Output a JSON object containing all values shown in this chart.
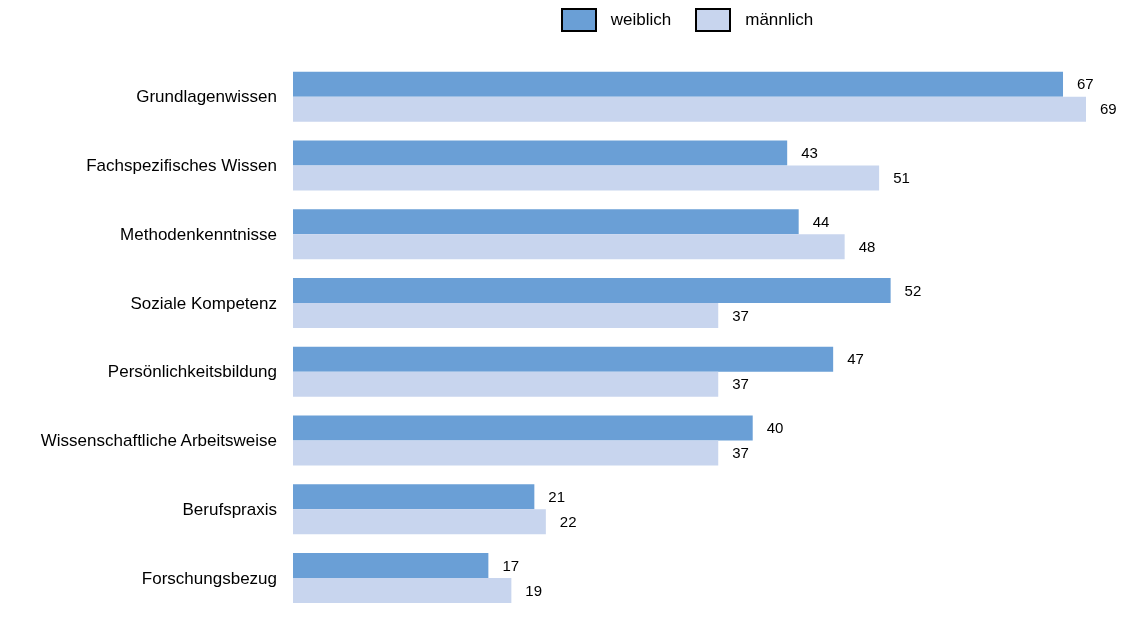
{
  "chart_data": {
    "type": "bar",
    "orientation": "horizontal",
    "categories": [
      "Grundlagenwissen",
      "Fachspezifisches Wissen",
      "Methodenkenntnisse",
      "Soziale Kompetenz",
      "Persönlichkeitsbildung",
      "Wissenschaftliche Arbeitsweise",
      "Berufspraxis",
      "Forschungsbezug"
    ],
    "series": [
      {
        "name": "weiblich",
        "color": "#6a9fd6",
        "values": [
          67,
          43,
          44,
          52,
          47,
          40,
          21,
          17
        ]
      },
      {
        "name": "männlich",
        "color": "#c8d5ee",
        "values": [
          69,
          51,
          48,
          37,
          37,
          37,
          22,
          19
        ]
      }
    ],
    "data_labels": true,
    "legend": "top",
    "grid": false,
    "tick_labels": "y"
  }
}
